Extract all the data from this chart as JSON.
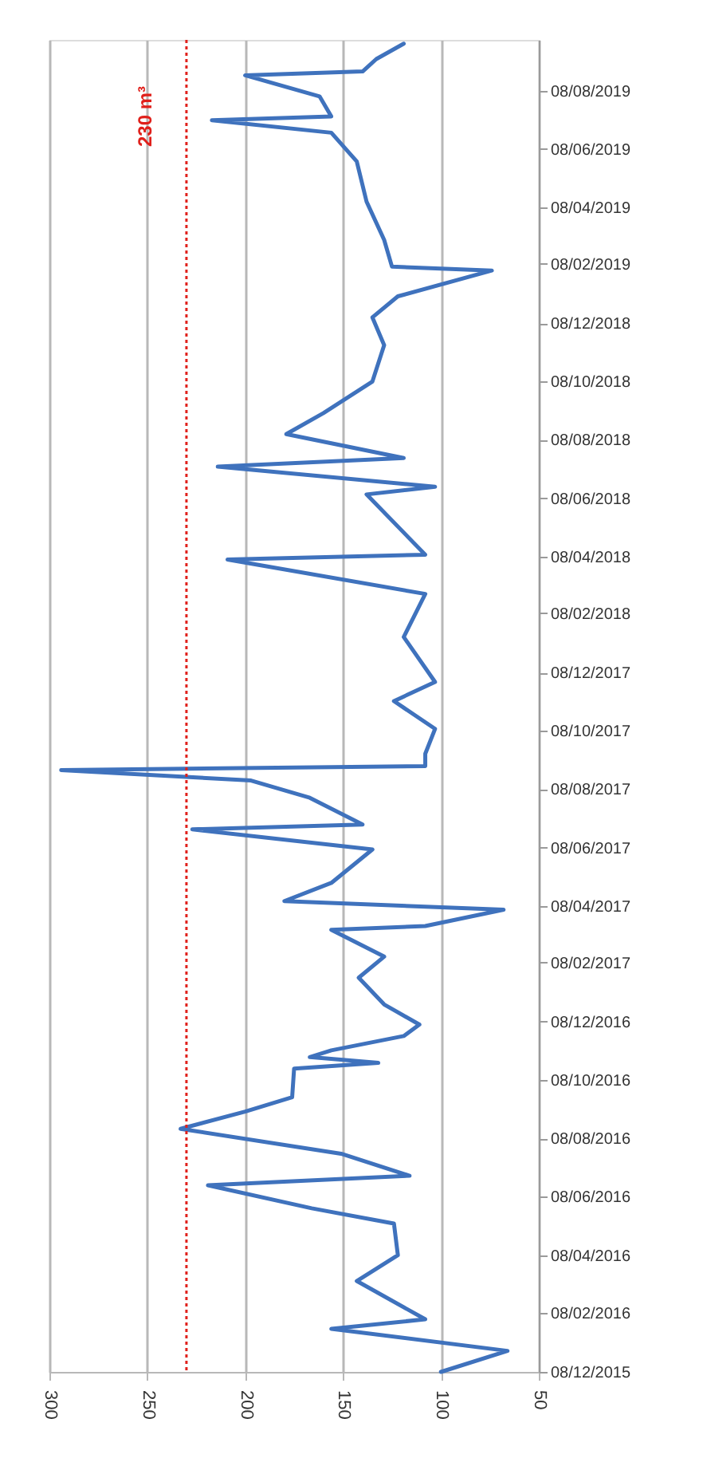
{
  "chart_data": {
    "type": "line",
    "orientation": "horizontal",
    "color": "#3f72bd",
    "x": [
      "2015-12-08",
      "2015-12-30",
      "2016-01-22",
      "2016-02-01",
      "2016-03-12",
      "2016-04-08",
      "2016-05-11",
      "2016-05-27",
      "2016-06-20",
      "2016-06-30",
      "2016-07-23",
      "2016-08-18",
      "2016-09-05",
      "2016-09-20",
      "2016-10-20",
      "2016-10-26",
      "2016-11-01",
      "2016-11-08",
      "2016-11-23",
      "2016-12-05",
      "2016-12-26",
      "2017-01-23",
      "2017-02-14",
      "2017-03-14",
      "2017-03-18",
      "2017-04-04",
      "2017-04-13",
      "2017-05-02",
      "2017-06-06",
      "2017-06-27",
      "2017-07-02",
      "2017-07-30",
      "2017-08-17",
      "2017-08-28",
      "2017-09-01",
      "2017-09-14",
      "2017-10-10",
      "2017-11-08",
      "2017-11-28",
      "2018-01-14",
      "2018-02-28",
      "2018-04-05",
      "2018-04-10",
      "2018-06-12",
      "2018-06-20",
      "2018-07-11",
      "2018-07-20",
      "2018-08-14",
      "2018-09-05",
      "2018-10-08",
      "2018-11-15",
      "2018-12-14",
      "2019-01-05",
      "2019-02-01",
      "2019-02-05",
      "2019-03-05",
      "2019-04-14",
      "2019-05-26",
      "2019-06-25",
      "2019-07-08",
      "2019-07-12",
      "2019-08-02",
      "2019-08-24",
      "2019-08-28",
      "2019-09-10",
      "2019-09-26"
    ],
    "values": [
      100,
      66,
      156,
      108,
      143,
      122,
      124,
      166,
      219,
      116,
      151,
      233,
      200,
      176,
      175,
      132,
      167,
      156,
      119,
      111,
      129,
      142,
      129,
      156,
      108,
      68,
      180,
      156,
      135,
      227,
      140,
      167,
      197,
      294,
      108,
      108,
      103,
      124,
      103,
      119,
      108,
      209,
      108,
      138,
      103,
      214,
      119,
      179,
      160,
      135,
      129,
      135,
      122,
      74,
      125,
      129,
      138,
      143,
      156,
      217,
      156,
      162,
      200,
      140,
      133,
      119
    ],
    "xlim": [
      300,
      50
    ],
    "xticks": [
      300,
      250,
      200,
      150,
      100,
      50
    ],
    "ylim": [
      "2015-12-08",
      "2019-09-30"
    ],
    "yticks": [
      {
        "value": "2015-12-08",
        "label": "08/12/2015"
      },
      {
        "value": "2016-02-08",
        "label": "08/02/2016"
      },
      {
        "value": "2016-04-08",
        "label": "08/04/2016"
      },
      {
        "value": "2016-06-08",
        "label": "08/06/2016"
      },
      {
        "value": "2016-08-08",
        "label": "08/08/2016"
      },
      {
        "value": "2016-10-08",
        "label": "08/10/2016"
      },
      {
        "value": "2016-12-08",
        "label": "08/12/2016"
      },
      {
        "value": "2017-02-08",
        "label": "08/02/2017"
      },
      {
        "value": "2017-04-08",
        "label": "08/04/2017"
      },
      {
        "value": "2017-06-08",
        "label": "08/06/2017"
      },
      {
        "value": "2017-08-08",
        "label": "08/08/2017"
      },
      {
        "value": "2017-10-08",
        "label": "08/10/2017"
      },
      {
        "value": "2017-12-08",
        "label": "08/12/2017"
      },
      {
        "value": "2018-02-08",
        "label": "08/02/2018"
      },
      {
        "value": "2018-04-08",
        "label": "08/04/2018"
      },
      {
        "value": "2018-06-08",
        "label": "08/06/2018"
      },
      {
        "value": "2018-08-08",
        "label": "08/08/2018"
      },
      {
        "value": "2018-10-08",
        "label": "08/10/2018"
      },
      {
        "value": "2018-12-08",
        "label": "08/12/2018"
      },
      {
        "value": "2019-02-08",
        "label": "08/02/2019"
      },
      {
        "value": "2019-04-08",
        "label": "08/04/2019"
      },
      {
        "value": "2019-06-08",
        "label": "08/06/2019"
      },
      {
        "value": "2019-08-08",
        "label": "08/08/2019"
      }
    ],
    "ref_lines": [
      {
        "axis": "x",
        "value": 230,
        "label": "230 m³",
        "color": "#e0201b",
        "line_style": "dotted"
      }
    ],
    "grid": "x"
  }
}
